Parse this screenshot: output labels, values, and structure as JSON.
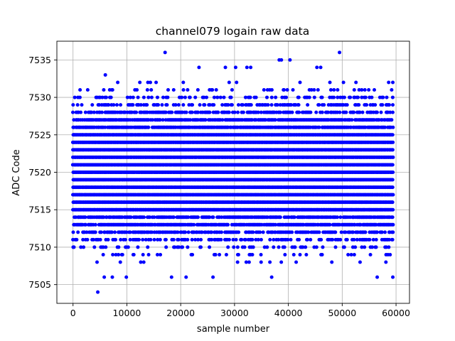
{
  "chart_data": {
    "type": "scatter",
    "title": "channel079 logain raw data",
    "xlabel": "sample number",
    "ylabel": "ADC Code",
    "xlim": [
      -3000,
      62500
    ],
    "ylim": [
      7502.5,
      7537.5
    ],
    "xticks": [
      0,
      10000,
      20000,
      30000,
      40000,
      50000,
      60000
    ],
    "xtick_labels": [
      "0",
      "10000",
      "20000",
      "30000",
      "40000",
      "50000",
      "60000"
    ],
    "yticks": [
      7505,
      7510,
      7515,
      7520,
      7525,
      7530,
      7535
    ],
    "ytick_labels": [
      "7505",
      "7510",
      "7515",
      "7520",
      "7525",
      "7530",
      "7535"
    ],
    "grid": true,
    "marker_color": "#0000ff",
    "series": [
      {
        "x_range": [
          0,
          59400
        ],
        "dense_band": [
          7508,
          7532
        ],
        "outliers": [
          {
            "x": 4600,
            "y": 7504
          },
          {
            "x": 17100,
            "y": 7536
          },
          {
            "x": 49500,
            "y": 7536
          },
          {
            "x": 38300,
            "y": 7535
          },
          {
            "x": 38700,
            "y": 7535
          },
          {
            "x": 40300,
            "y": 7535
          },
          {
            "x": 5800,
            "y": 7506
          },
          {
            "x": 7300,
            "y": 7506
          },
          {
            "x": 9900,
            "y": 7506
          },
          {
            "x": 18300,
            "y": 7506
          },
          {
            "x": 21000,
            "y": 7506
          },
          {
            "x": 26000,
            "y": 7506
          },
          {
            "x": 36900,
            "y": 7506
          },
          {
            "x": 56500,
            "y": 7506
          },
          {
            "x": 59400,
            "y": 7506
          },
          {
            "x": 6000,
            "y": 7533
          },
          {
            "x": 23400,
            "y": 7534
          },
          {
            "x": 28300,
            "y": 7534
          },
          {
            "x": 30200,
            "y": 7534
          },
          {
            "x": 32300,
            "y": 7534
          },
          {
            "x": 33000,
            "y": 7534
          },
          {
            "x": 45300,
            "y": 7534
          },
          {
            "x": 46000,
            "y": 7534
          }
        ]
      }
    ]
  }
}
